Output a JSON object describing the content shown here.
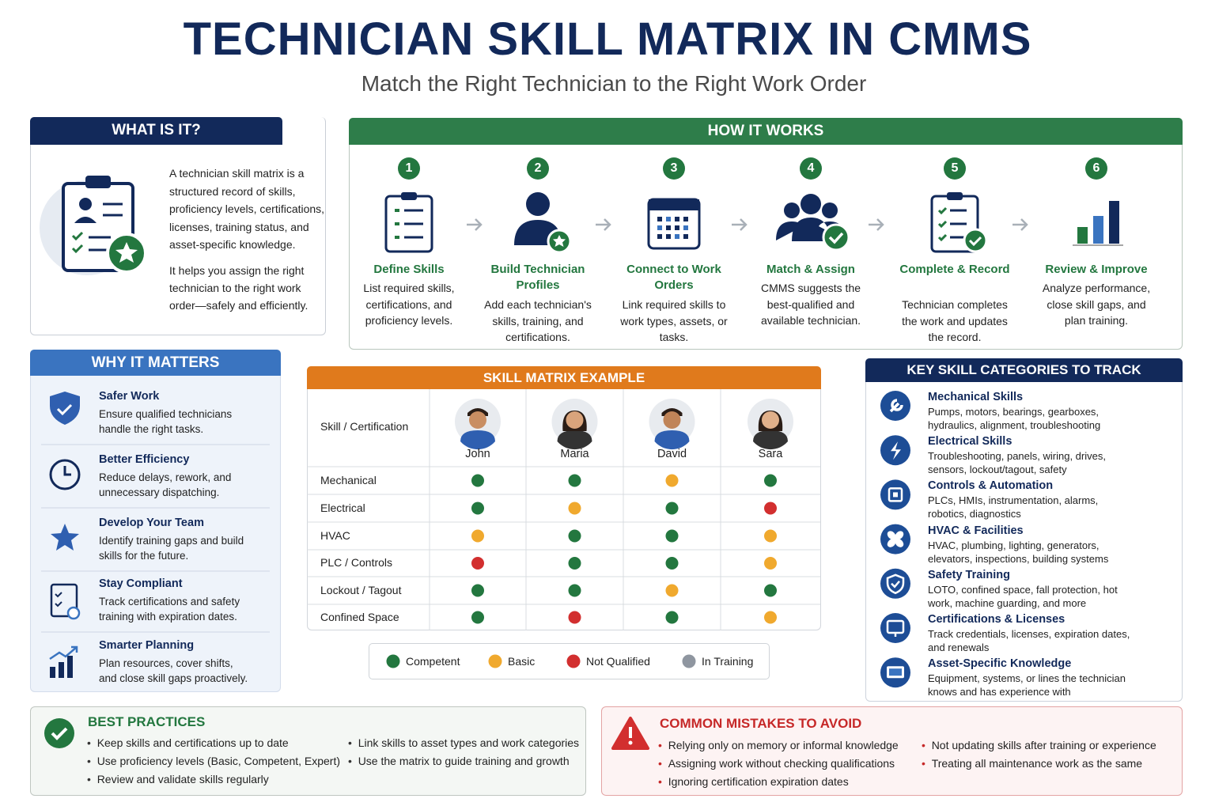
{
  "title": "TECHNICIAN SKILL MATRIX IN CMMS",
  "subtitle": "Match the Right Technician to the Right Work Order",
  "what_is_it": {
    "heading": "WHAT IS IT?",
    "paragraphs": [
      "A technician skill matrix is a structured record of skills, proficiency levels, certifications, licenses, training status, and asset-specific knowledge.",
      "It helps you assign the right technician to the right work order—safely and efficiently."
    ]
  },
  "how_it_works": {
    "heading": "HOW IT WORKS",
    "steps": [
      {
        "number": 1,
        "title": "Define Skills",
        "text": "List required skills, certifications, and proficiency levels."
      },
      {
        "number": 2,
        "title": "Build Technician Profiles",
        "text": "Add each technician's skills, training, and certifications."
      },
      {
        "number": 3,
        "title": "Connect to Work Orders",
        "text": "Link required skills to work types, assets, or tasks."
      },
      {
        "number": 4,
        "title": "Match & Assign",
        "text": "CMMS suggests the best-qualified and available technician."
      },
      {
        "number": 5,
        "title": "Complete & Record",
        "text": "Technician completes the work and updates the record."
      },
      {
        "number": 6,
        "title": "Review & Improve",
        "text": "Analyze performance, close skill gaps, and plan training."
      }
    ]
  },
  "why_it_matters": {
    "heading": "WHY IT MATTERS",
    "items": [
      {
        "title": "Safer Work",
        "text": "Ensure qualified technicians handle the right tasks."
      },
      {
        "title": "Better Efficiency",
        "text": "Reduce delays, rework, and unnecessary dispatching."
      },
      {
        "title": "Develop Your Team",
        "text": "Identify training gaps and build skills for the future."
      },
      {
        "title": "Stay Compliant",
        "text": "Track certifications and safety training with expiration dates."
      },
      {
        "title": "Smarter Planning",
        "text": "Plan resources, cover shifts, and close skill gaps proactively."
      }
    ]
  },
  "skill_matrix": {
    "heading": "SKILL MATRIX EXAMPLE",
    "corner": "Skill / Certification",
    "technicians": [
      "John",
      "Maria",
      "David",
      "Sara"
    ],
    "rows": [
      {
        "skill": "Mechanical",
        "levels": [
          "Competent",
          "Competent",
          "Basic",
          "Competent"
        ]
      },
      {
        "skill": "Electrical",
        "levels": [
          "Competent",
          "Basic",
          "Competent",
          "Not Qualified"
        ]
      },
      {
        "skill": "HVAC",
        "levels": [
          "Basic",
          "Competent",
          "Competent",
          "Basic"
        ]
      },
      {
        "skill": "PLC / Controls",
        "levels": [
          "Not Qualified",
          "Competent",
          "Competent",
          "Basic"
        ]
      },
      {
        "skill": "Lockout / Tagout",
        "levels": [
          "Competent",
          "Competent",
          "Basic",
          "Competent"
        ]
      },
      {
        "skill": "Confined Space",
        "levels": [
          "Competent",
          "Not Qualified",
          "Competent",
          "Basic"
        ]
      }
    ],
    "legend": [
      {
        "label": "Competent",
        "color": "#23773f"
      },
      {
        "label": "Basic",
        "color": "#f0a92e"
      },
      {
        "label": "Not Qualified",
        "color": "#d22f2f"
      },
      {
        "label": "In Training",
        "color": "#8f96a0"
      }
    ]
  },
  "key_skills": {
    "heading": "KEY SKILL CATEGORIES TO TRACK",
    "items": [
      {
        "title": "Mechanical Skills",
        "text": "Pumps, motors, bearings, gearboxes, hydraulics, alignment, troubleshooting"
      },
      {
        "title": "Electrical Skills",
        "text": "Troubleshooting, panels, wiring, drives, sensors, lockout/tagout, safety"
      },
      {
        "title": "Controls & Automation",
        "text": "PLCs, HMIs, instrumentation, alarms, robotics, diagnostics"
      },
      {
        "title": "HVAC & Facilities",
        "text": "HVAC, plumbing, lighting, generators, elevators, inspections, building systems"
      },
      {
        "title": "Safety Training",
        "text": "LOTO, confined space, fall protection, hot work, machine guarding, and more"
      },
      {
        "title": "Certifications & Licenses",
        "text": "Track credentials, licenses, expiration dates, and renewals"
      },
      {
        "title": "Asset-Specific Knowledge",
        "text": "Equipment, systems, or lines the technician knows and has experience with"
      }
    ]
  },
  "best_practices": {
    "heading": "BEST PRACTICES",
    "columns": [
      [
        "Keep skills and certifications up to date",
        "Use proficiency levels (Basic, Competent, Expert)",
        "Review and validate skills regularly"
      ],
      [
        "Link skills to asset types and work categories",
        "Use the matrix to guide training and growth"
      ]
    ]
  },
  "common_mistakes": {
    "heading": "COMMON MISTAKES TO AVOID",
    "columns": [
      [
        "Relying only on memory or informal knowledge",
        "Assigning work without checking qualifications",
        "Ignoring certification expiration dates"
      ],
      [
        "Not updating skills after training or experience",
        "Treating all maintenance work as the same"
      ]
    ]
  }
}
